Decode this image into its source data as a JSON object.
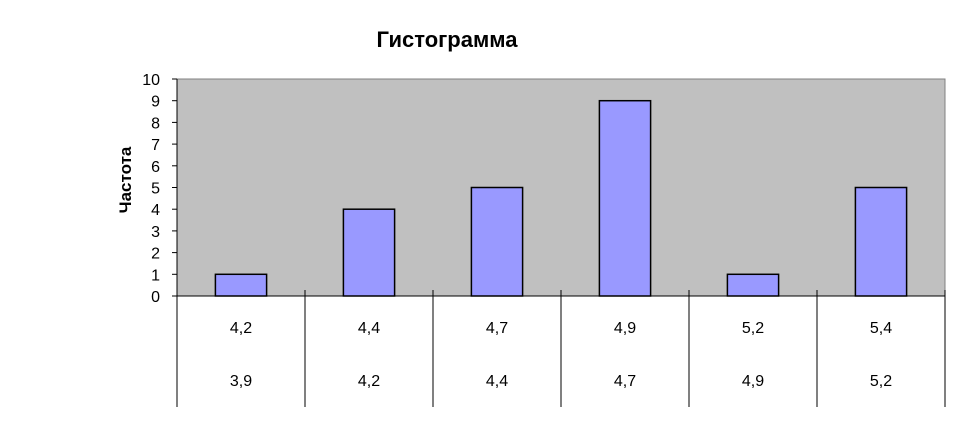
{
  "chart_data": {
    "type": "bar",
    "title": "Гистограмма",
    "xlabel": "",
    "ylabel": "Частота",
    "ylim": [
      0,
      10
    ],
    "yticks": [
      "0",
      "1",
      "2",
      "3",
      "4",
      "5",
      "6",
      "7",
      "8",
      "9",
      "10"
    ],
    "categories": [
      [
        "4,2",
        "3,9"
      ],
      [
        "4,4",
        "4,2"
      ],
      [
        "4,7",
        "4,4"
      ],
      [
        "4,9",
        "4,7"
      ],
      [
        "5,2",
        "4,9"
      ],
      [
        "5,4",
        "5,2"
      ]
    ],
    "values": [
      1,
      4,
      5,
      9,
      1,
      5
    ],
    "grid": false,
    "legend": "none",
    "colors": {
      "plot_background": "#c0c0c0",
      "bar_fill": "#9999ff",
      "bar_stroke": "#000000"
    }
  }
}
